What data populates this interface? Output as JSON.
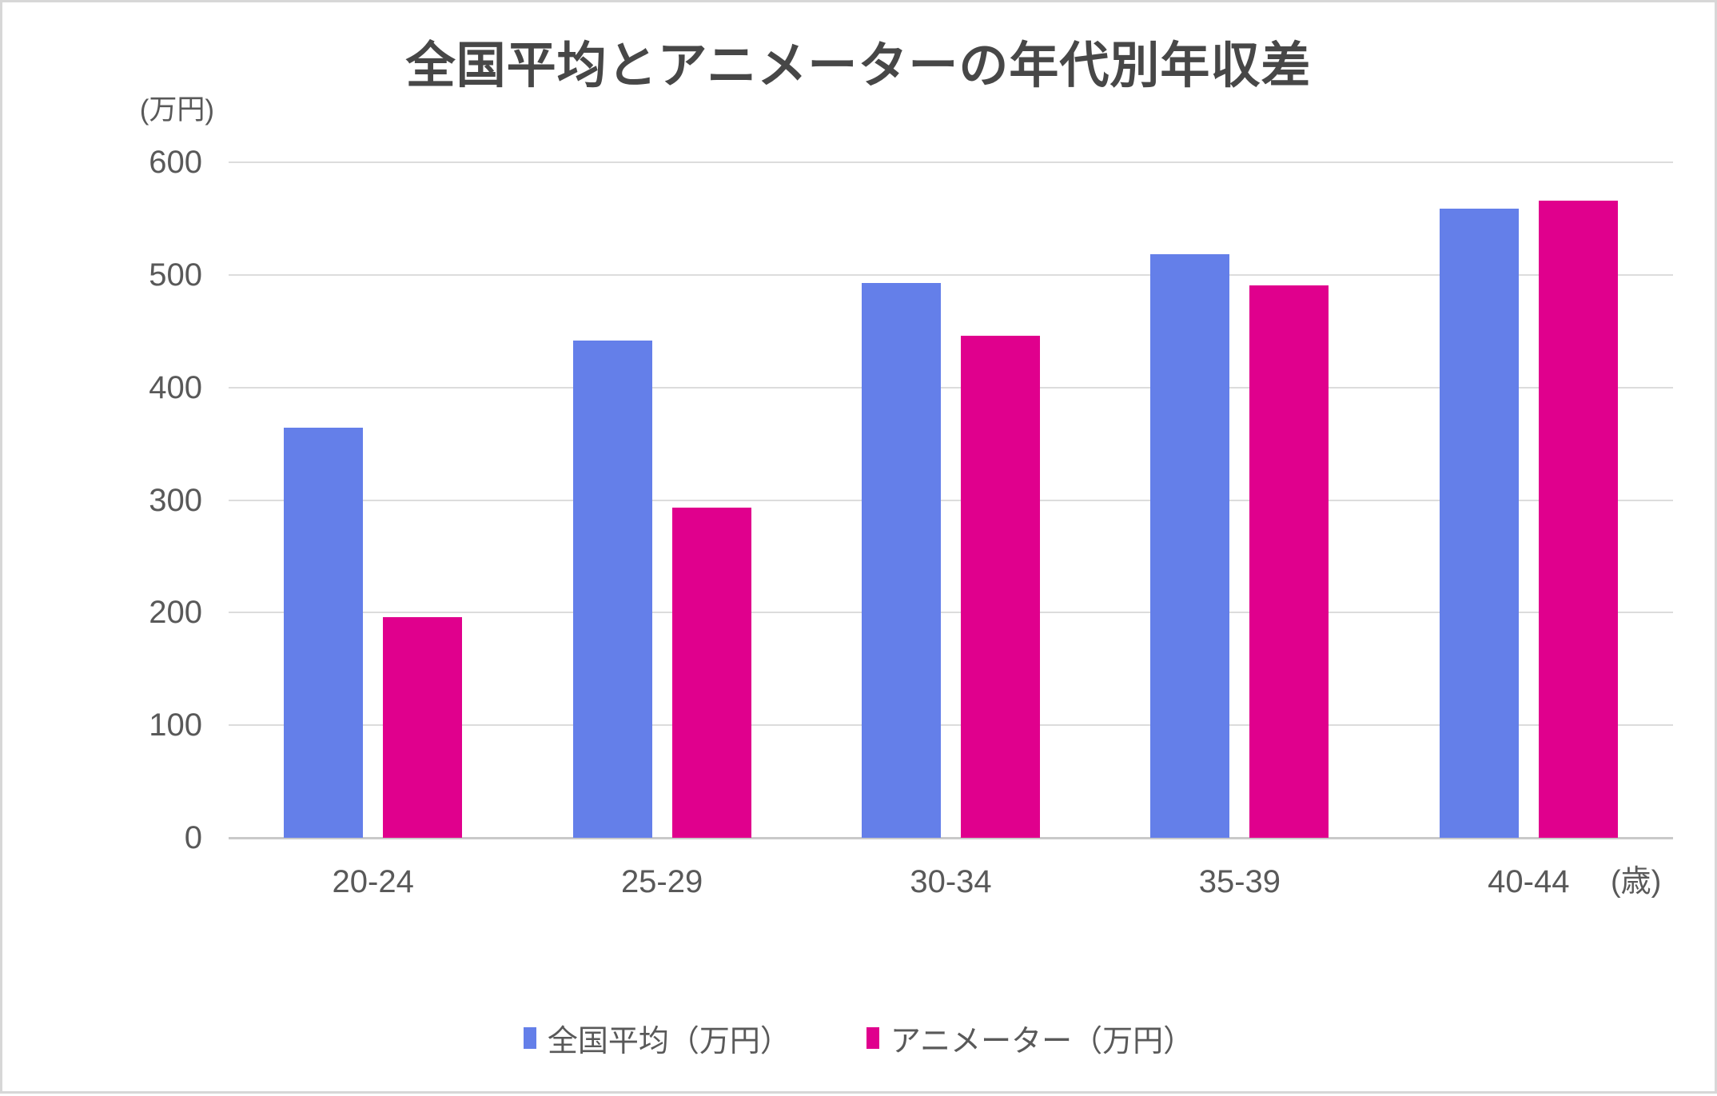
{
  "title": "全国平均とアニメーターの年代別年収差",
  "y_axis_unit": "(万円)",
  "x_axis_unit": "(歳)",
  "chart_data": {
    "type": "bar",
    "title": "全国平均とアニメーターの年代別年収差",
    "categories": [
      "20-24",
      "25-29",
      "30-34",
      "35-39",
      "40-44"
    ],
    "series": [
      {
        "name": "全国平均（万円）",
        "color": "#647FE9",
        "values": [
          364,
          442,
          493,
          518,
          559
        ]
      },
      {
        "name": "アニメーター（万円）",
        "color": "#E0008D",
        "values": [
          196,
          293,
          446,
          491,
          566
        ]
      }
    ],
    "ylabel": "(万円)",
    "xlabel": "(歳)",
    "ylim": [
      0,
      600
    ],
    "yticks": [
      0,
      100,
      200,
      300,
      400,
      500,
      600
    ],
    "grid": true,
    "legend_position": "bottom"
  },
  "colors": {
    "grid": "#DCDCDC",
    "axis": "#C9C9C9",
    "text": "#595959",
    "title_text": "#474747"
  }
}
